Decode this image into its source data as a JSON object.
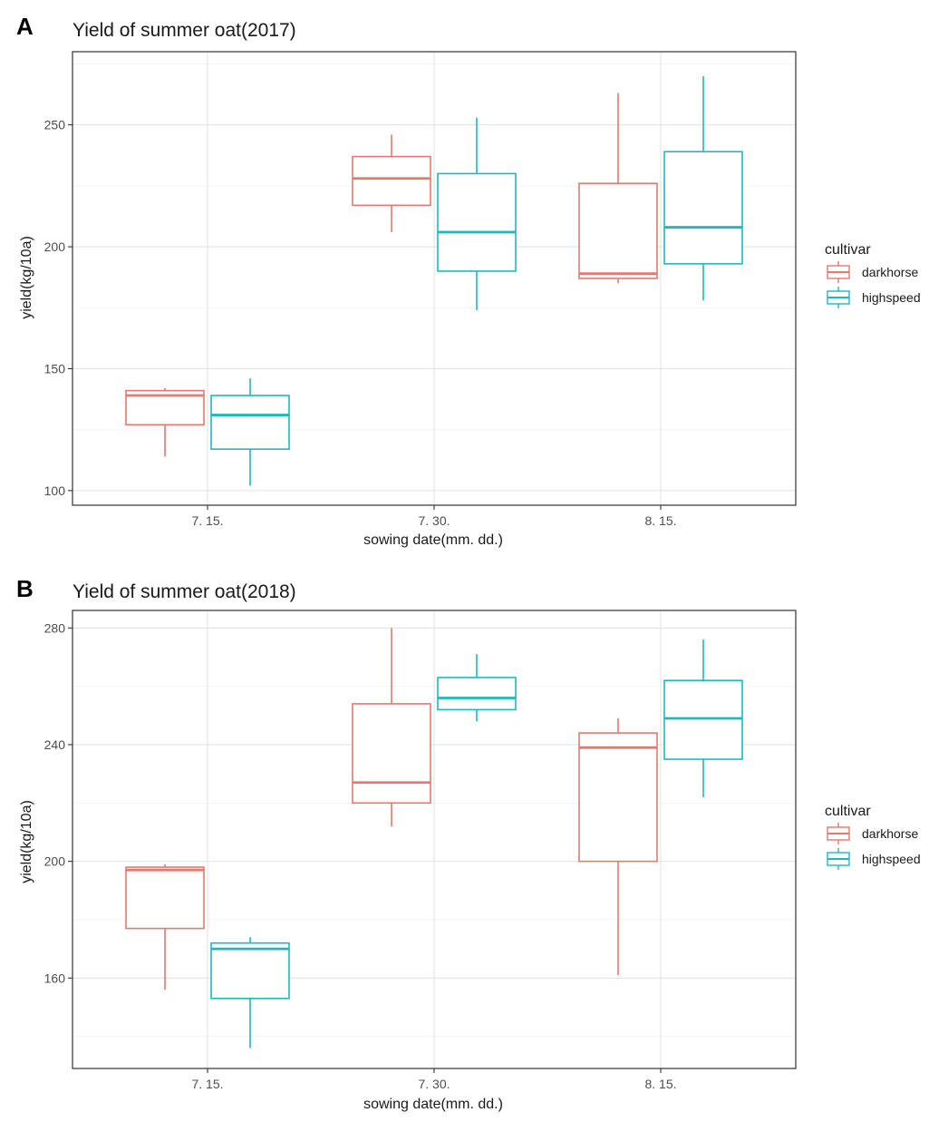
{
  "colors": {
    "darkhorse": "#e07b72",
    "highspeed": "#1eb9bd"
  },
  "chart_data": [
    {
      "panel_label": "A",
      "type": "boxplot",
      "title": "Yield of summer oat(2017)",
      "xlabel": "sowing date(mm. dd.)",
      "ylabel": "yield(kg/10a)",
      "categories": [
        "7. 15.",
        "7. 30.",
        "8. 15."
      ],
      "ylim": [
        94,
        280
      ],
      "yticks": [
        100,
        150,
        200,
        250
      ],
      "grid": true,
      "legend": {
        "title": "cultivar",
        "position": "right"
      },
      "series": [
        {
          "name": "darkhorse",
          "color": "#e07b72",
          "boxes": [
            {
              "min": 114,
              "q1": 127,
              "median": 139,
              "q3": 141,
              "max": 142
            },
            {
              "min": 206,
              "q1": 217,
              "median": 228,
              "q3": 237,
              "max": 246
            },
            {
              "min": 185,
              "q1": 187,
              "median": 189,
              "q3": 226,
              "max": 263
            }
          ]
        },
        {
          "name": "highspeed",
          "color": "#1eb9bd",
          "boxes": [
            {
              "min": 102,
              "q1": 117,
              "median": 131,
              "q3": 139,
              "max": 146
            },
            {
              "min": 174,
              "q1": 190,
              "median": 206,
              "q3": 230,
              "max": 253
            },
            {
              "min": 178,
              "q1": 193,
              "median": 208,
              "q3": 239,
              "max": 270
            }
          ]
        }
      ]
    },
    {
      "panel_label": "B",
      "type": "boxplot",
      "title": "Yield of summer oat(2018)",
      "xlabel": "sowing date(mm. dd.)",
      "ylabel": "yield(kg/10a)",
      "categories": [
        "7. 15.",
        "7. 30.",
        "8. 15."
      ],
      "ylim": [
        129,
        286
      ],
      "yticks": [
        160,
        200,
        240,
        280
      ],
      "grid": true,
      "legend": {
        "title": "cultivar",
        "position": "right"
      },
      "series": [
        {
          "name": "darkhorse",
          "color": "#e07b72",
          "boxes": [
            {
              "min": 156,
              "q1": 177,
              "median": 197,
              "q3": 198,
              "max": 199
            },
            {
              "min": 212,
              "q1": 220,
              "median": 227,
              "q3": 254,
              "max": 280
            },
            {
              "min": 161,
              "q1": 200,
              "median": 239,
              "q3": 244,
              "max": 249
            }
          ]
        },
        {
          "name": "highspeed",
          "color": "#1eb9bd",
          "boxes": [
            {
              "min": 136,
              "q1": 153,
              "median": 170,
              "q3": 172,
              "max": 174
            },
            {
              "min": 248,
              "q1": 252,
              "median": 256,
              "q3": 263,
              "max": 271
            },
            {
              "min": 222,
              "q1": 235,
              "median": 249,
              "q3": 262,
              "max": 276
            }
          ]
        }
      ]
    }
  ]
}
